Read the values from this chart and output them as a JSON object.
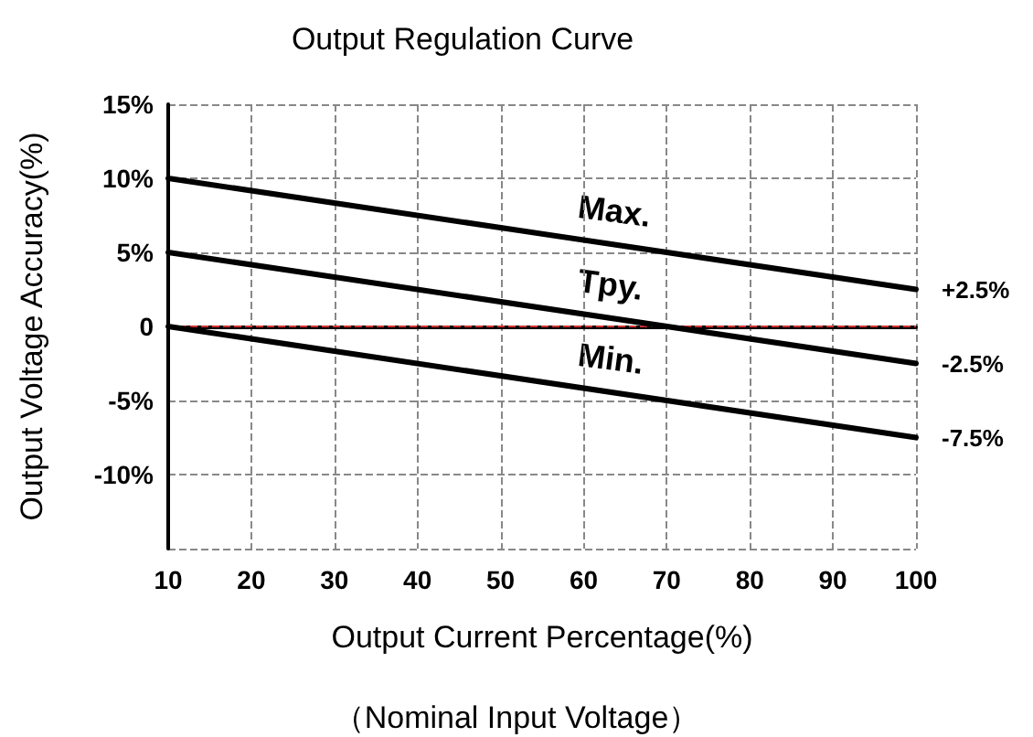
{
  "chart_data": {
    "type": "line",
    "title": "Output Regulation Curve",
    "xlabel": "Output Current Percentage(%)",
    "ylabel": "Output Voltage Accuracy(%)",
    "annotations": [
      "（Nominal Input Voltage）"
    ],
    "x": [
      10,
      100
    ],
    "series": [
      {
        "name": "Max.",
        "color": "#000000",
        "values": [
          10,
          2.5
        ],
        "value_labels": [
          null,
          "+2.5%"
        ]
      },
      {
        "name": "Tpy.",
        "color": "#000000",
        "values": [
          5,
          -2.5
        ],
        "value_labels": [
          null,
          "-2.5%"
        ]
      },
      {
        "name": "Min.",
        "color": "#000000",
        "values": [
          0,
          -7.5
        ],
        "value_labels": [
          null,
          "-7.5%"
        ]
      }
    ],
    "xlim": [
      10,
      100
    ],
    "xticks": [
      10,
      20,
      30,
      40,
      50,
      60,
      70,
      80,
      90,
      100
    ],
    "ylim": [
      -15,
      15
    ],
    "yticks": [
      {
        "value": -15,
        "label": null
      },
      {
        "value": -10,
        "label": "-10%"
      },
      {
        "value": -5,
        "label": "-5%"
      },
      0,
      {
        "value": 5,
        "label": "5%"
      },
      {
        "value": 10,
        "label": "10%"
      },
      {
        "value": 15,
        "label": "15%"
      }
    ],
    "ref_lines": [
      {
        "axis": "y",
        "value": 0,
        "label": null,
        "color": "#d03030",
        "line_style": "dashed"
      }
    ],
    "grid": true,
    "legend": false,
    "marker": "none",
    "line_style": "solid"
  }
}
